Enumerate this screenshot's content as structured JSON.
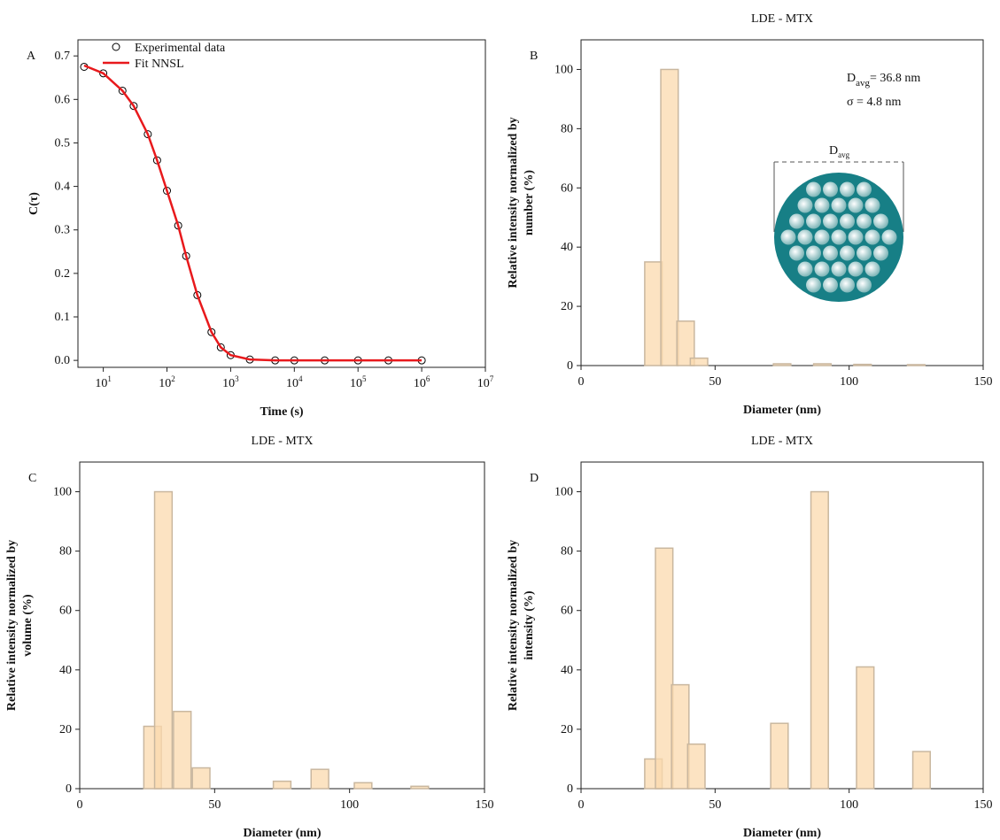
{
  "chart_data": [
    {
      "type": "scatter_line",
      "panel": "A",
      "xlabel": "Time (s)",
      "ylabel": [
        "C(τ)"
      ],
      "xscale": "log",
      "xlim": [
        4,
        10000000
      ],
      "ylim": [
        -0.016,
        0.737
      ],
      "xticks": [
        {
          "value": 10,
          "label": "10",
          "exponent": "1"
        },
        {
          "value": 100,
          "label": "10",
          "exponent": "2"
        },
        {
          "value": 1000,
          "label": "10",
          "exponent": "3"
        },
        {
          "value": 10000,
          "label": "10",
          "exponent": "4"
        },
        {
          "value": 100000,
          "label": "10",
          "exponent": "5"
        },
        {
          "value": 1000000,
          "label": "10",
          "exponent": "6"
        },
        {
          "value": 10000000,
          "label": "10",
          "exponent": "7"
        }
      ],
      "yticks": [
        {
          "value": 0,
          "label": "0.0"
        },
        0.1,
        0.2,
        0.3,
        0.4,
        0.5,
        0.6,
        0.7
      ],
      "x": [
        5,
        10,
        20,
        30,
        50,
        70,
        100,
        150,
        200,
        300,
        500,
        700,
        1000,
        2000,
        5000,
        10000,
        30000,
        100000,
        300000,
        1000000
      ],
      "series": [
        {
          "name": "Experimental data",
          "mode": "markers",
          "color": "#000000",
          "values": [
            0.675,
            0.66,
            0.62,
            0.585,
            0.52,
            0.46,
            0.39,
            0.31,
            0.24,
            0.15,
            0.065,
            0.03,
            0.012,
            0.002,
            0,
            0,
            0,
            0,
            0,
            0
          ]
        },
        {
          "name": "Fit NNSL",
          "mode": "line",
          "color": "#e8191c",
          "values": [
            0.678,
            0.66,
            0.62,
            0.585,
            0.52,
            0.46,
            0.39,
            0.31,
            0.24,
            0.15,
            0.065,
            0.03,
            0.012,
            0.002,
            0,
            0,
            0,
            0,
            0,
            0
          ]
        }
      ]
    },
    {
      "type": "bar",
      "panel": "B",
      "title": "LDE - MTX",
      "xlabel": "Diameter (nm)",
      "ylabel": [
        "Relative intensity normalized by",
        "number (%)"
      ],
      "xlim": [
        0,
        150
      ],
      "ylim": [
        0,
        110
      ],
      "xticks": [
        0,
        50,
        100,
        150
      ],
      "yticks": [
        0,
        20,
        40,
        60,
        80,
        100
      ],
      "color": "#fbd9ae",
      "x": [
        27,
        33,
        39,
        44,
        75,
        90,
        105,
        125
      ],
      "values": [
        35,
        100,
        15,
        2.5,
        0.6,
        0.6,
        0.4,
        0.3
      ],
      "annotations": [
        {
          "text": "D",
          "sub": "avg",
          "rest": "= 36.8 nm"
        },
        {
          "text": "σ = 4.8 nm"
        }
      ],
      "diagram_label": {
        "text": "D",
        "sub": "avg"
      }
    },
    {
      "type": "bar",
      "panel": "C",
      "title": "LDE - MTX",
      "xlabel": "Diameter (nm)",
      "ylabel": [
        "Relative intensity normalized by",
        "volume (%)"
      ],
      "xlim": [
        0,
        150
      ],
      "ylim": [
        0,
        110
      ],
      "xticks": [
        0,
        50,
        100,
        150
      ],
      "yticks": [
        0,
        20,
        40,
        60,
        80,
        100
      ],
      "color": "#fbd9ae",
      "x": [
        27,
        31,
        38,
        45,
        75,
        89,
        105,
        126
      ],
      "values": [
        21,
        100,
        26,
        7,
        2.5,
        6.5,
        2,
        0.8
      ]
    },
    {
      "type": "bar",
      "panel": "D",
      "title": "LDE - MTX",
      "xlabel": "Diameter (nm)",
      "ylabel": [
        "Relative intensity normalized by",
        "intensity (%)"
      ],
      "xlim": [
        0,
        150
      ],
      "ylim": [
        0,
        110
      ],
      "xticks": [
        0,
        50,
        100,
        150
      ],
      "yticks": [
        0,
        20,
        40,
        60,
        80,
        100
      ],
      "color": "#fbd9ae",
      "x": [
        27,
        31,
        37,
        43,
        74,
        89,
        106,
        127
      ],
      "values": [
        10,
        81,
        35,
        15,
        22,
        100,
        41,
        12.5
      ]
    }
  ]
}
